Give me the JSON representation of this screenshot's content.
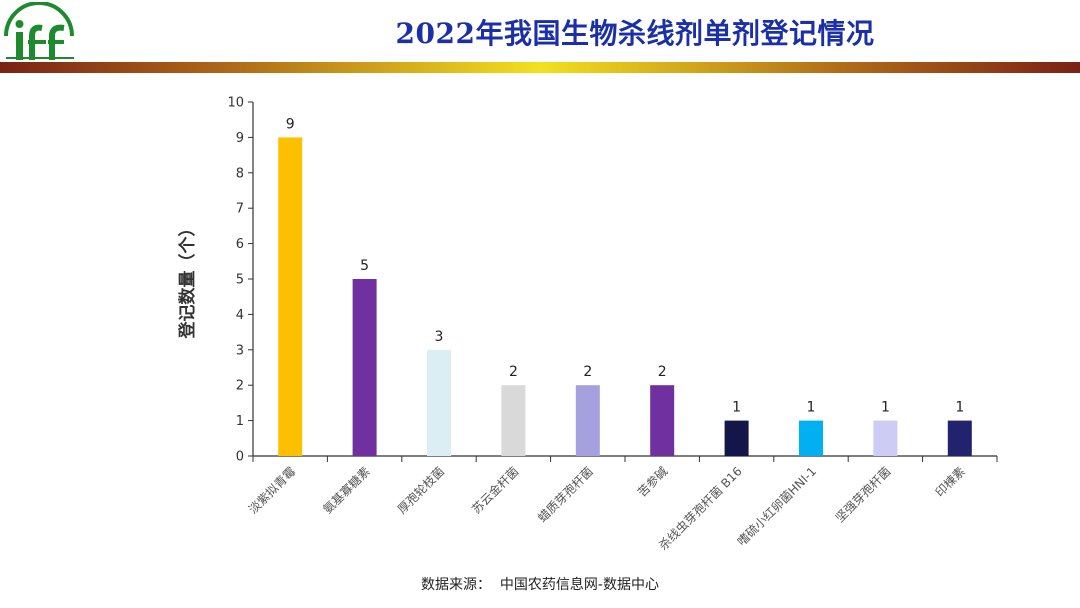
{
  "header": {
    "title": "2022年我国生物杀线剂单剂登记情况"
  },
  "source": "数据来源：  中国农药信息网-数据中心",
  "colors": {
    "title": "#1b2fa8",
    "axis": "#333333"
  },
  "chart_data": {
    "type": "bar",
    "title": "2022年我国生物杀线剂单剂登记情况",
    "ylabel": "登记数量（个）",
    "xlabel": "",
    "ylim": [
      0,
      10
    ],
    "yticks": [
      0,
      1,
      2,
      3,
      4,
      5,
      6,
      7,
      8,
      9,
      10
    ],
    "grid": false,
    "categories": [
      "淡紫拟青霉",
      "氨基寡糖素",
      "厚孢轮枝菌",
      "苏云金杆菌",
      "蜡质芽孢杆菌",
      "苦参碱",
      "杀线虫芽孢杆菌 B16",
      "嗜硫小红卵菌HNI-1",
      "坚强芽孢杆菌",
      "印楝素"
    ],
    "values": [
      9,
      5,
      3,
      2,
      2,
      2,
      1,
      1,
      1,
      1
    ],
    "value_labels": [
      "9",
      "5",
      "3",
      "2",
      "2",
      "2",
      "1",
      "1",
      "1",
      "1"
    ],
    "bar_colors": [
      "#ffc000",
      "#7030a0",
      "#daeef3",
      "#d9d9d9",
      "#a5a0de",
      "#7030a0",
      "#14164a",
      "#00b0f0",
      "#ccccf4",
      "#22236e"
    ]
  }
}
